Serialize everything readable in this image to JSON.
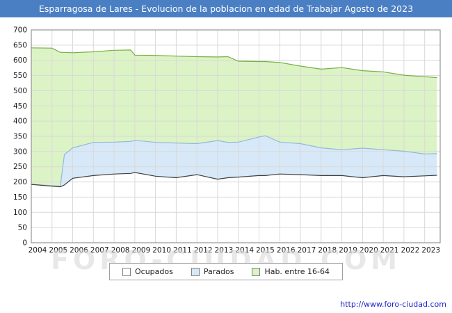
{
  "titlebar": {
    "title": "Esparragosa de Lares - Evolucion de la poblacion en edad de Trabajar Agosto de 2023"
  },
  "watermark": "FORO-CIUDAD.COM",
  "footer": {
    "url": "http://www.foro-ciudad.com"
  },
  "colors": {
    "titlebar_bg": "#4b7fc4",
    "grid": "#d9d9d9",
    "plot_border": "#808080",
    "link": "#2323cc"
  },
  "legend": {
    "items": [
      {
        "key": "ocupados",
        "label": "Ocupados",
        "fill": "#ffffff",
        "border": "#808080"
      },
      {
        "key": "parados",
        "label": "Parados",
        "fill": "#d7e8f8",
        "border": "#808080"
      },
      {
        "key": "hab-16-64",
        "label": "Hab. entre 16-64",
        "fill": "#dcf3c6",
        "border": "#808080"
      }
    ]
  },
  "chart_data": {
    "type": "area",
    "title": "Evolucion de la poblacion en edad de Trabajar",
    "xlabel": "",
    "ylabel": "",
    "xlim": [
      2004,
      2023.75
    ],
    "ylim": [
      0,
      700
    ],
    "grid": true,
    "legend_position": "bottom",
    "y_ticks": [
      0,
      50,
      100,
      150,
      200,
      250,
      300,
      350,
      400,
      450,
      500,
      550,
      600,
      650,
      700
    ],
    "x_years": [
      2004,
      2005,
      2006,
      2007,
      2008,
      2009,
      2010,
      2011,
      2012,
      2013,
      2014,
      2015,
      2016,
      2017,
      2018,
      2019,
      2020,
      2021,
      2022,
      2023
    ],
    "x_points": [
      2004,
      2005,
      2005.4,
      2005.6,
      2006,
      2007,
      2008,
      2008.8,
      2009,
      2010,
      2011,
      2012,
      2013,
      2013.5,
      2014,
      2015,
      2015.3,
      2016,
      2017,
      2018,
      2019,
      2020,
      2021,
      2022,
      2023,
      2023.6
    ],
    "note": "Overlapping areas; values are the visible upper boundary of each band (persons), estimated from gridlines.",
    "series": [
      {
        "key": "hab-16-64",
        "name": "Hab. entre 16-64",
        "fill": "#dcf3c6",
        "line": "#76b041",
        "values": [
          641,
          640,
          626,
          626,
          625,
          628,
          633,
          634,
          617,
          616,
          614,
          612,
          611,
          612,
          597,
          596,
          596,
          593,
          581,
          571,
          576,
          566,
          562,
          551,
          546,
          543
        ]
      },
      {
        "key": "parados",
        "name": "Parados",
        "fill": "#d7e8f8",
        "line": "#93b9d8",
        "values": [
          192,
          188,
          186,
          290,
          312,
          330,
          331,
          333,
          337,
          330,
          328,
          326,
          336,
          330,
          331,
          348,
          352,
          331,
          326,
          312,
          306,
          311,
          306,
          301,
          292,
          293
        ]
      },
      {
        "key": "ocupados",
        "name": "Ocupados",
        "fill": "#ffffff",
        "line": "#404040",
        "values": [
          192,
          186,
          184,
          190,
          212,
          221,
          226,
          228,
          231,
          219,
          214,
          224,
          209,
          214,
          216,
          221,
          221,
          226,
          224,
          221,
          221,
          214,
          221,
          217,
          220,
          222
        ]
      }
    ]
  }
}
